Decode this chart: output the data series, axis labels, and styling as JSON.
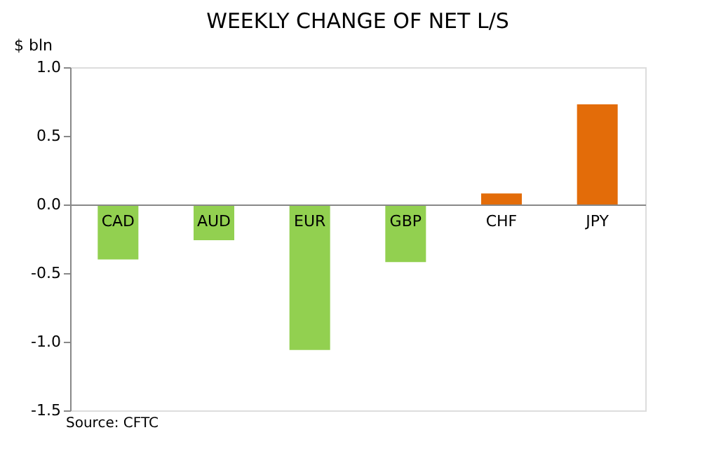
{
  "chart_data": {
    "type": "bar",
    "title": "WEEKLY CHANGE OF NET L/S",
    "ylabel": "$ bln",
    "categories": [
      "CAD",
      "AUD",
      "EUR",
      "GBP",
      "CHF",
      "JPY"
    ],
    "values": [
      -0.4,
      -0.26,
      -1.06,
      -0.42,
      0.08,
      0.73
    ],
    "colors": [
      "#92d050",
      "#92d050",
      "#92d050",
      "#92d050",
      "#e36c09",
      "#e36c09"
    ],
    "ylim": [
      -1.5,
      1.0
    ],
    "yticks": [
      {
        "value": -1.5,
        "label": "-1.5"
      },
      {
        "value": -1.0,
        "label": "-1.0"
      },
      {
        "value": -0.5,
        "label": "-0.5"
      },
      {
        "value": 0,
        "label": "0.0"
      },
      {
        "value": 0.5,
        "label": "0.5"
      },
      {
        "value": 1.0,
        "label": "1.0"
      }
    ],
    "grid": false,
    "annotations": [
      "Source: CFTC"
    ]
  }
}
